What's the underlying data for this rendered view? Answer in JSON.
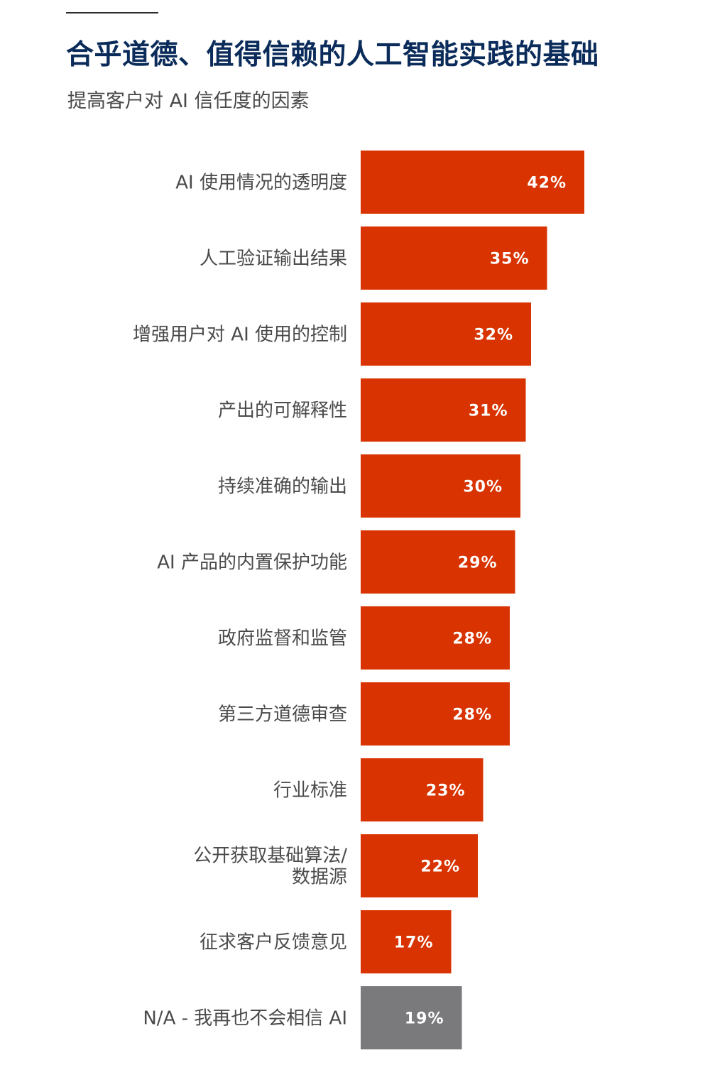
{
  "header": {
    "title": "合乎道德、值得信赖的人工智能实践的基础",
    "subtitle": "提高客户对 AI 信任度的因素"
  },
  "colors": {
    "bar": "#d83300",
    "bar_na": "#7a797c",
    "title": "#0b2c5a",
    "label": "#4a4a4a"
  },
  "chart_data": {
    "type": "bar",
    "orientation": "horizontal",
    "title": "合乎道德、值得信赖的人工智能实践的基础",
    "subtitle": "提高客户对 AI 信任度的因素",
    "categories": [
      [
        "AI 使用情况的透明度"
      ],
      [
        "人工验证输出结果"
      ],
      [
        "增强用户对 AI 使用的控制"
      ],
      [
        "产出的可解释性"
      ],
      [
        "持续准确的输出"
      ],
      [
        "AI 产品的内置保护功能"
      ],
      [
        "政府监督和监管"
      ],
      [
        "第三方道德审查"
      ],
      [
        "行业标准"
      ],
      [
        "公开获取基础算法/",
        "数据源"
      ],
      [
        "征求客户反馈意见"
      ],
      [
        "N/A - 我再也不会相信 AI"
      ]
    ],
    "values": [
      42,
      35,
      32,
      31,
      30,
      29,
      28,
      28,
      23,
      22,
      17,
      19
    ],
    "value_labels": [
      "42%",
      "35%",
      "32%",
      "31%",
      "30%",
      "29%",
      "28%",
      "28%",
      "23%",
      "22%",
      "17%",
      "19%"
    ],
    "highlight_last_as_gray": true,
    "xlabel": "",
    "ylabel": "",
    "xlim": [
      0,
      100
    ],
    "grid": false,
    "legend": "none"
  }
}
